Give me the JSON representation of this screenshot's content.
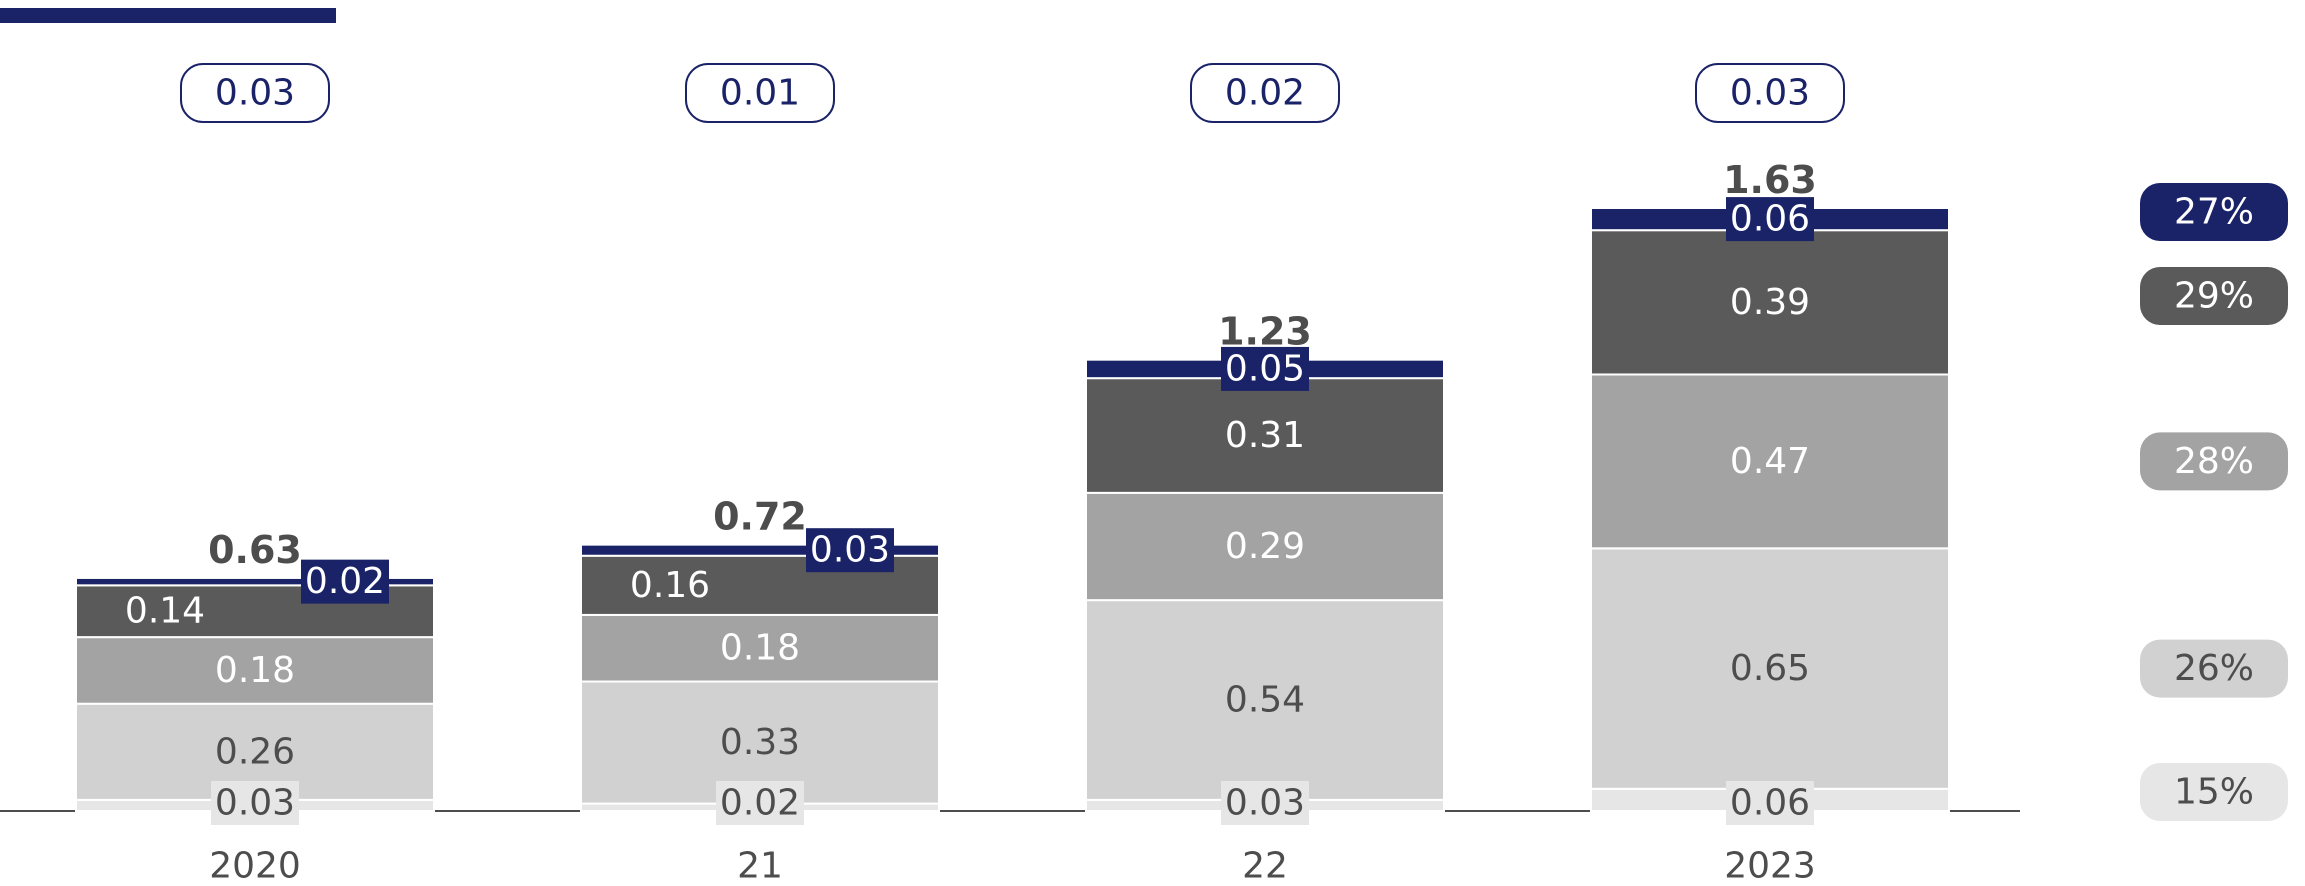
{
  "chart_data": {
    "type": "bar",
    "stacked": true,
    "categories": [
      "2020",
      "21",
      "22",
      "2023"
    ],
    "series": [
      {
        "values": [
          0.03,
          0.02,
          0.03,
          0.06
        ],
        "labels": [
          "0.03",
          "0.02",
          "0.03",
          "0.06"
        ],
        "color": "#e6e6e6",
        "text_color": "#4d4d4d",
        "label_box": true
      },
      {
        "values": [
          0.26,
          0.33,
          0.54,
          0.65
        ],
        "labels": [
          "0.26",
          "0.33",
          "0.54",
          "0.65"
        ],
        "color": "#d1d1d1",
        "text_color": "#4d4d4d"
      },
      {
        "values": [
          0.18,
          0.18,
          0.29,
          0.47
        ],
        "labels": [
          "0.18",
          "0.18",
          "0.29",
          "0.47"
        ],
        "color": "#a3a3a3",
        "text_color": "#ffffff"
      },
      {
        "values": [
          0.14,
          0.16,
          0.31,
          0.39
        ],
        "labels": [
          "0.14",
          "0.16",
          "0.31",
          "0.39"
        ],
        "color": "#5a5a5a",
        "text_color": "#ffffff"
      },
      {
        "values": [
          0.02,
          0.03,
          0.05,
          0.06
        ],
        "labels": [
          "0.02",
          "0.03",
          "0.05",
          "0.06"
        ],
        "color": "#1a2368",
        "text_color": "#ffffff",
        "label_box": true
      }
    ],
    "totals": [
      "0.63",
      "0.72",
      "1.23",
      "1.63"
    ],
    "top_badges": [
      "0.03",
      "0.01",
      "0.02",
      "0.03"
    ],
    "share_badges": [
      {
        "label": "27%",
        "color": "#1a2368",
        "text_color": "#ffffff"
      },
      {
        "label": "29%",
        "color": "#5a5a5a",
        "text_color": "#ffffff"
      },
      {
        "label": "28%",
        "color": "#a3a3a3",
        "text_color": "#ffffff"
      },
      {
        "label": "26%",
        "color": "#d1d1d1",
        "text_color": "#4d4d4d"
      },
      {
        "label": "15%",
        "color": "#e6e6e6",
        "text_color": "#4d4d4d"
      }
    ],
    "ylim": [
      0,
      1.63
    ],
    "colors": {
      "accent": "#1a2368",
      "axis": "#4d4d4d",
      "text": "#4d4d4d"
    }
  }
}
